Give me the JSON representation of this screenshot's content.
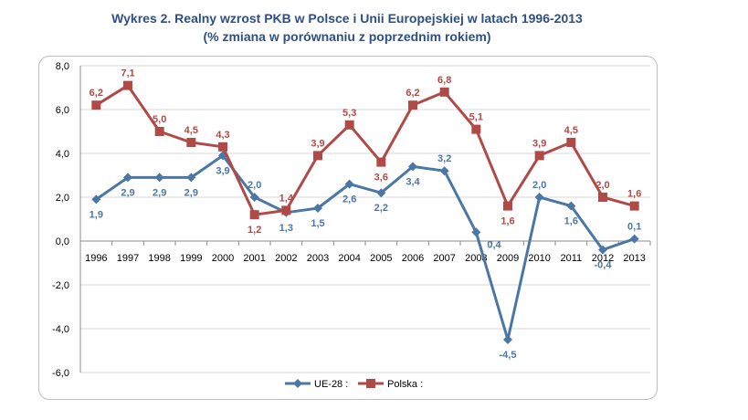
{
  "title": {
    "line1": "Wykres 2. Realny wzrost PKB w Polsce i Unii Europejskiej w latach 1996-2013",
    "line2": "(% zmiana w porównaniu z poprzednim rokiem)"
  },
  "colors": {
    "ue": "#4a77a5",
    "pl": "#b04a47",
    "title": "#2e4f86",
    "grid": "#d9d9d9"
  },
  "chart_data": {
    "type": "line",
    "title": "Wykres 2. Realny wzrost PKB w Polsce i Unii Europejskiej w latach 1996-2013",
    "subtitle": "(% zmiana w porównaniu z poprzednim rokiem)",
    "xlabel": "",
    "ylabel": "",
    "x": [
      "1996",
      "1997",
      "1998",
      "1999",
      "2000",
      "2001",
      "2002",
      "2003",
      "2004",
      "2005",
      "2006",
      "2007",
      "2008",
      "2009",
      "2010",
      "2011",
      "2012",
      "2013"
    ],
    "ylim": [
      -6,
      8
    ],
    "yticks": [
      8,
      6,
      4,
      2,
      0,
      -2,
      -4,
      -6
    ],
    "ytick_labels": [
      "8,0",
      "6,0",
      "4,0",
      "2,0",
      "0,0",
      "-2,0",
      "-4,0",
      "-6,0"
    ],
    "grid": true,
    "legend_position": "bottom",
    "series": [
      {
        "name": "UE-28 :",
        "marker": "diamond",
        "color": "#4a77a5",
        "values": [
          1.9,
          2.9,
          2.9,
          2.9,
          3.9,
          2.0,
          1.3,
          1.5,
          2.6,
          2.2,
          3.4,
          3.2,
          0.4,
          -4.5,
          2.0,
          1.6,
          -0.4,
          0.1
        ],
        "labels": [
          "1,9",
          "2,9",
          "2,9",
          "2,9",
          "3,9",
          "2,0",
          "1,3",
          "1,5",
          "2,6",
          "2,2",
          "3,4",
          "3,2",
          "0,4",
          "-4,5",
          "2,0",
          "1,6",
          "-0,4",
          "0,1"
        ]
      },
      {
        "name": "Polska :",
        "marker": "square",
        "color": "#b04a47",
        "values": [
          6.2,
          7.1,
          5.0,
          4.5,
          4.3,
          1.2,
          1.4,
          3.9,
          5.3,
          3.6,
          6.2,
          6.8,
          5.1,
          1.6,
          3.9,
          4.5,
          2.0,
          1.6
        ],
        "labels": [
          "6,2",
          "7,1",
          "5,0",
          "4,5",
          "4,3",
          "1,2",
          "1,4",
          "3,9",
          "5,3",
          "3,6",
          "6,2",
          "6,8",
          "5,1",
          "1,6",
          "3,9",
          "4,5",
          "2,0",
          "1,6"
        ]
      }
    ]
  }
}
